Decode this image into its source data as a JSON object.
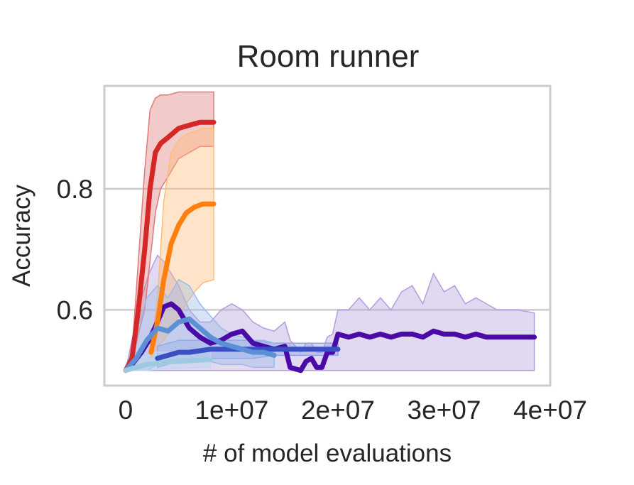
{
  "chart_data": {
    "type": "line",
    "title": "Room runner",
    "xlabel": "# of model evaluations",
    "ylabel": "Accuracy",
    "xlim": [
      -2000000,
      40000000
    ],
    "ylim": [
      0.475,
      0.97
    ],
    "x_ticks": [
      0,
      10000000,
      20000000,
      30000000,
      40000000
    ],
    "x_tick_labels": [
      "0",
      "1e+07",
      "2e+07",
      "3e+07",
      "4e+07"
    ],
    "y_ticks": [
      0.6,
      0.8
    ],
    "y_tick_labels": [
      "0.6",
      "0.8"
    ],
    "grid": "horizontal",
    "legend": "none",
    "series": [
      {
        "color": "#b39ddb",
        "line_color": "#4a0aa8",
        "x": [
          0,
          600000,
          1500000,
          2200000,
          3000000,
          3600000,
          4300000,
          5000000,
          6000000,
          7000000,
          8000000,
          9000000,
          10000000,
          11000000,
          12000000,
          13000000,
          14000000,
          15000000,
          15500000,
          16500000,
          17000000,
          17500000,
          18000000,
          18500000,
          19000000,
          19500000,
          20000000,
          21000000,
          22000000,
          23000000,
          24000000,
          25000000,
          26000000,
          27000000,
          28000000,
          29000000,
          30000000,
          31000000,
          32000000,
          33000000,
          34000000,
          35000000,
          36000000,
          37000000,
          38500000
        ],
        "y": [
          0.5,
          0.51,
          0.53,
          0.55,
          0.58,
          0.605,
          0.61,
          0.6,
          0.57,
          0.555,
          0.545,
          0.55,
          0.56,
          0.565,
          0.545,
          0.54,
          0.535,
          0.54,
          0.505,
          0.5,
          0.515,
          0.52,
          0.505,
          0.505,
          0.53,
          0.53,
          0.56,
          0.555,
          0.56,
          0.555,
          0.56,
          0.555,
          0.56,
          0.56,
          0.555,
          0.565,
          0.56,
          0.56,
          0.555,
          0.56,
          0.555,
          0.555,
          0.555,
          0.555,
          0.555
        ],
        "upper": [
          0.5,
          0.55,
          0.62,
          0.66,
          0.69,
          0.68,
          0.66,
          0.64,
          0.6,
          0.58,
          0.58,
          0.6,
          0.61,
          0.6,
          0.58,
          0.57,
          0.565,
          0.58,
          0.55,
          0.53,
          0.545,
          0.545,
          0.53,
          0.53,
          0.555,
          0.56,
          0.6,
          0.6,
          0.62,
          0.6,
          0.62,
          0.6,
          0.63,
          0.64,
          0.61,
          0.66,
          0.63,
          0.64,
          0.61,
          0.62,
          0.61,
          0.6,
          0.6,
          0.6,
          0.595
        ],
        "lower": [
          0.5,
          0.5,
          0.5,
          0.5,
          0.5,
          0.5,
          0.5,
          0.5,
          0.5,
          0.5,
          0.5,
          0.5,
          0.5,
          0.5,
          0.5,
          0.5,
          0.5,
          0.5,
          0.5,
          0.5,
          0.5,
          0.5,
          0.5,
          0.5,
          0.5,
          0.5,
          0.5,
          0.5,
          0.5,
          0.5,
          0.5,
          0.5,
          0.5,
          0.5,
          0.5,
          0.5,
          0.5,
          0.5,
          0.5,
          0.5,
          0.5,
          0.5,
          0.5,
          0.5,
          0.5
        ]
      },
      {
        "color": "#e07a7a",
        "line_color": "#d62728",
        "x": [
          0,
          600000,
          1200000,
          1800000,
          2300000,
          2800000,
          3300000,
          4000000,
          5000000,
          6000000,
          7000000,
          8300000
        ],
        "y": [
          0.5,
          0.52,
          0.6,
          0.7,
          0.8,
          0.86,
          0.875,
          0.885,
          0.9,
          0.905,
          0.91,
          0.91
        ],
        "upper": [
          0.5,
          0.53,
          0.68,
          0.83,
          0.93,
          0.95,
          0.955,
          0.955,
          0.96,
          0.96,
          0.96,
          0.96
        ],
        "lower": [
          0.5,
          0.51,
          0.56,
          0.6,
          0.68,
          0.76,
          0.8,
          0.82,
          0.85,
          0.86,
          0.87,
          0.87
        ]
      },
      {
        "color": "#ffbb78",
        "line_color": "#ff7f0e",
        "x": [
          2400000,
          3000000,
          3600000,
          4300000,
          5000000,
          5700000,
          6500000,
          7300000,
          8300000
        ],
        "y": [
          0.53,
          0.58,
          0.65,
          0.71,
          0.74,
          0.76,
          0.77,
          0.775,
          0.775
        ],
        "upper": [
          0.54,
          0.62,
          0.78,
          0.86,
          0.88,
          0.89,
          0.895,
          0.9,
          0.9
        ],
        "lower": [
          0.52,
          0.54,
          0.55,
          0.57,
          0.59,
          0.61,
          0.63,
          0.645,
          0.65
        ]
      },
      {
        "color": "#8fa3e8",
        "line_color": "#3b4fc4",
        "x": [
          3000000,
          4000000,
          5000000,
          6000000,
          8000000,
          10000000,
          12000000,
          14000000,
          16000000,
          18000000,
          20000000
        ],
        "y": [
          0.52,
          0.525,
          0.53,
          0.53,
          0.535,
          0.535,
          0.535,
          0.535,
          0.535,
          0.535,
          0.535
        ],
        "upper": [
          0.54,
          0.545,
          0.55,
          0.55,
          0.55,
          0.55,
          0.55,
          0.545,
          0.545,
          0.545,
          0.545
        ],
        "lower": [
          0.505,
          0.51,
          0.515,
          0.515,
          0.52,
          0.52,
          0.52,
          0.525,
          0.525,
          0.525,
          0.525
        ]
      },
      {
        "color": "#9bbbe8",
        "line_color": "#5b8fd6",
        "x": [
          0,
          1000000,
          2000000,
          3000000,
          4000000,
          5000000,
          6000000,
          7000000,
          8000000,
          9000000,
          10000000,
          11000000,
          12000000,
          13000000,
          14000000
        ],
        "y": [
          0.5,
          0.52,
          0.55,
          0.57,
          0.565,
          0.58,
          0.585,
          0.57,
          0.555,
          0.545,
          0.54,
          0.535,
          0.53,
          0.53,
          0.525
        ],
        "upper": [
          0.5,
          0.56,
          0.62,
          0.64,
          0.62,
          0.65,
          0.64,
          0.61,
          0.59,
          0.57,
          0.56,
          0.555,
          0.55,
          0.55,
          0.545
        ],
        "lower": [
          0.5,
          0.5,
          0.5,
          0.51,
          0.51,
          0.52,
          0.52,
          0.52,
          0.515,
          0.51,
          0.51,
          0.51,
          0.505,
          0.505,
          0.505
        ]
      },
      {
        "color": "#bcd7ef",
        "line_color": "#9ecae1",
        "x": [
          0,
          1000000,
          2000000,
          3000000,
          4000000,
          5000000,
          6000000,
          7000000,
          8000000
        ],
        "y": [
          0.5,
          0.505,
          0.51,
          0.512,
          0.514,
          0.515,
          0.516,
          0.517,
          0.518
        ],
        "upper": [
          0.5,
          0.515,
          0.525,
          0.53,
          0.53,
          0.532,
          0.533,
          0.534,
          0.535
        ],
        "lower": [
          0.5,
          0.5,
          0.5,
          0.502,
          0.503,
          0.503,
          0.504,
          0.505,
          0.505
        ]
      }
    ]
  }
}
